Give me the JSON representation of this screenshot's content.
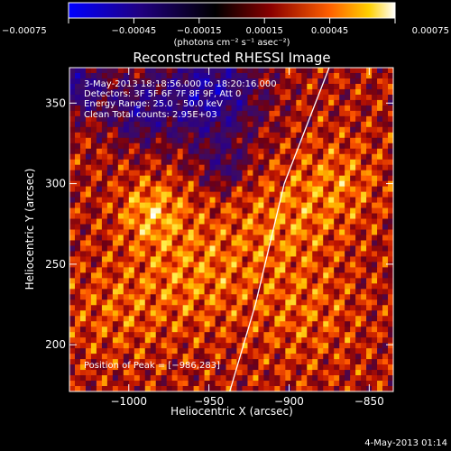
{
  "chart_data": {
    "type": "heatmap",
    "title": "Reconstructed RHESSI Image",
    "xlabel": "Heliocentric X (arcsec)",
    "ylabel": "Heliocentric Y (arcsec)",
    "xlim": [
      -1037,
      -835
    ],
    "ylim": [
      171,
      372
    ],
    "x_ticks": [
      -1000,
      -950,
      -900,
      -850
    ],
    "y_ticks": [
      200,
      250,
      300,
      350
    ],
    "x_tick_labels": [
      "−1000",
      "−950",
      "−900",
      "−850"
    ],
    "y_tick_labels": [
      "200",
      "250",
      "300",
      "350"
    ],
    "colorbar": {
      "range": [
        -0.00075,
        0.00075
      ],
      "ticks": [
        -0.00075,
        -0.00045,
        -0.00015,
        0.00015,
        0.00045,
        0.00075
      ],
      "tick_labels": [
        "−0.00075",
        "−0.00045",
        "−0.00015",
        "0.00015",
        "0.00045",
        "0.00075"
      ],
      "units": "(photons cm⁻² s⁻¹ asec⁻²)",
      "colormap": [
        "#0000ff",
        "#000000",
        "#8a0000",
        "#ff6000",
        "#ffd000",
        "#ffffff"
      ]
    },
    "annotations": [
      "3‑May‑2013 18:18:56.000 to 18:20:16.000",
      "Detectors: 3F 5F 6F 7F 8F 9F, Att 0",
      "Energy Range: 25.0 – 50.0 keV",
      "Clean     Total counts: 2.95E+03"
    ],
    "peak_label": "Position of Peak = [−986,283]",
    "peak_position": [
      -986,
      283
    ],
    "limb_curve_points": [
      [
        -937,
        171
      ],
      [
        -921,
        225
      ],
      [
        -903,
        300
      ],
      [
        -875,
        372
      ]
    ],
    "grid": false
  },
  "footer": {
    "timestamp": "4‑May‑2013 01:14"
  }
}
